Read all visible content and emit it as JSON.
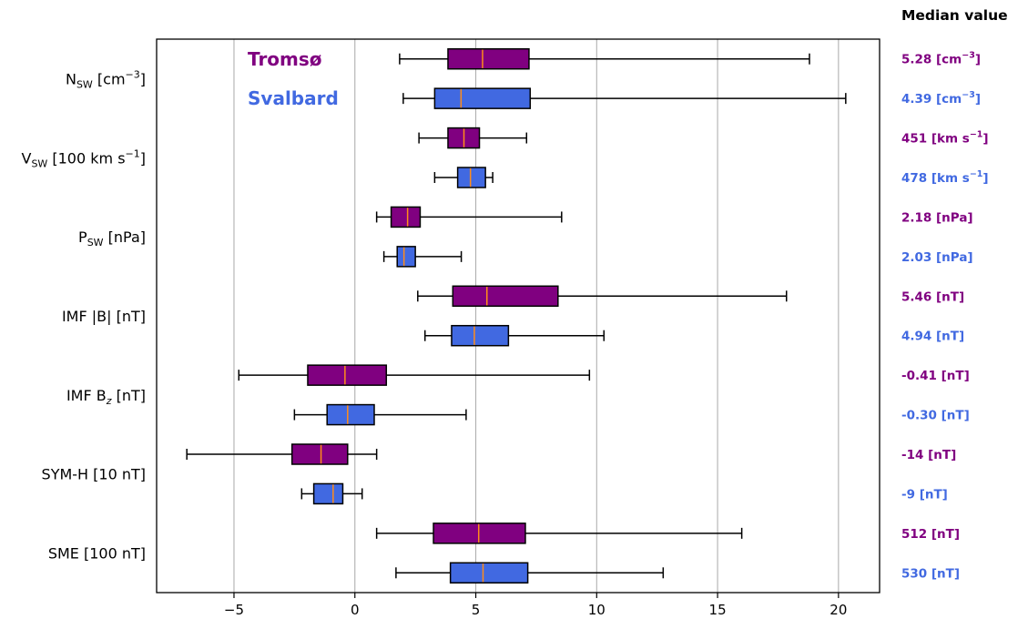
{
  "chart_data": {
    "type": "boxplot",
    "orientation": "horizontal",
    "xlim": [
      -8.2,
      21.7
    ],
    "x_ticks": [
      -5,
      0,
      5,
      10,
      15,
      20
    ],
    "x_tick_labels": [
      "−5",
      "0",
      "5",
      "10",
      "15",
      "20"
    ],
    "grid": "vertical",
    "header": "Median value",
    "colors": {
      "tromso": "#800080",
      "svalbard": "#4169e1",
      "median_line": "#ff8c1a",
      "grid": "#b0b0b0"
    },
    "series": [
      {
        "name": "Tromsø",
        "color": "#800080"
      },
      {
        "name": "Svalbard",
        "color": "#4169e1"
      }
    ],
    "categories": [
      {
        "label_main": "N",
        "label_sub": "SW",
        "label_rest": " [cm",
        "label_sup": "−3",
        "label_end": "]",
        "boxes": [
          {
            "series": "Tromsø",
            "whisker_low": 1.85,
            "q1": 3.85,
            "median": 5.28,
            "q3": 7.2,
            "whisker_high": 18.8,
            "median_text": {
              "main": "5.28 [cm",
              "sup": "−3",
              "end": "]"
            }
          },
          {
            "series": "Svalbard",
            "whisker_low": 2.0,
            "q1": 3.3,
            "median": 4.39,
            "q3": 7.25,
            "whisker_high": 20.3,
            "median_text": {
              "main": "4.39 [cm",
              "sup": "−3",
              "end": "]"
            }
          }
        ]
      },
      {
        "label_main": "V",
        "label_sub": "SW",
        "label_rest": " [100 km s",
        "label_sup": "−1",
        "label_end": "]",
        "boxes": [
          {
            "series": "Tromsø",
            "whisker_low": 2.65,
            "q1": 3.85,
            "median": 4.51,
            "q3": 5.15,
            "whisker_high": 7.1,
            "median_text": {
              "main": "451 [km s",
              "sup": "−1",
              "end": "]"
            }
          },
          {
            "series": "Svalbard",
            "whisker_low": 3.3,
            "q1": 4.25,
            "median": 4.78,
            "q3": 5.4,
            "whisker_high": 5.7,
            "median_text": {
              "main": "478 [km s",
              "sup": "−1",
              "end": "]"
            }
          }
        ]
      },
      {
        "label_main": "P",
        "label_sub": "SW",
        "label_rest": " [nPa]",
        "label_sup": "",
        "label_end": "",
        "boxes": [
          {
            "series": "Tromsø",
            "whisker_low": 0.9,
            "q1": 1.5,
            "median": 2.18,
            "q3": 2.7,
            "whisker_high": 8.55,
            "median_text": {
              "main": "2.18 [nPa]",
              "sup": "",
              "end": ""
            }
          },
          {
            "series": "Svalbard",
            "whisker_low": 1.2,
            "q1": 1.75,
            "median": 2.03,
            "q3": 2.5,
            "whisker_high": 4.4,
            "median_text": {
              "main": "2.03 [nPa]",
              "sup": "",
              "end": ""
            }
          }
        ]
      },
      {
        "label_main": "IMF |B| [nT]",
        "label_sub": "",
        "label_rest": "",
        "label_sup": "",
        "label_end": "",
        "boxes": [
          {
            "series": "Tromsø",
            "whisker_low": 2.6,
            "q1": 4.05,
            "median": 5.46,
            "q3": 8.4,
            "whisker_high": 17.85,
            "median_text": {
              "main": "5.46 [nT]",
              "sup": "",
              "end": ""
            }
          },
          {
            "series": "Svalbard",
            "whisker_low": 2.9,
            "q1": 4.0,
            "median": 4.94,
            "q3": 6.35,
            "whisker_high": 10.3,
            "median_text": {
              "main": "4.94 [nT]",
              "sup": "",
              "end": ""
            }
          }
        ]
      },
      {
        "label_main": "IMF B",
        "label_sub": "z",
        "label_rest": " [nT]",
        "label_sup": "",
        "label_end": "",
        "boxes": [
          {
            "series": "Tromsø",
            "whisker_low": -4.8,
            "q1": -1.95,
            "median": -0.41,
            "q3": 1.3,
            "whisker_high": 9.7,
            "median_text": {
              "main": "-0.41 [nT]",
              "sup": "",
              "end": ""
            }
          },
          {
            "series": "Svalbard",
            "whisker_low": -2.5,
            "q1": -1.15,
            "median": -0.3,
            "q3": 0.8,
            "whisker_high": 4.6,
            "median_text": {
              "main": "-0.30 [nT]",
              "sup": "",
              "end": ""
            }
          }
        ]
      },
      {
        "label_main": "SYM-H [10 nT]",
        "label_sub": "",
        "label_rest": "",
        "label_sup": "",
        "label_end": "",
        "boxes": [
          {
            "series": "Tromsø",
            "whisker_low": -6.95,
            "q1": -2.6,
            "median": -1.4,
            "q3": -0.3,
            "whisker_high": 0.9,
            "median_text": {
              "main": "-14 [nT]",
              "sup": "",
              "end": ""
            }
          },
          {
            "series": "Svalbard",
            "whisker_low": -2.2,
            "q1": -1.7,
            "median": -0.9,
            "q3": -0.5,
            "whisker_high": 0.3,
            "median_text": {
              "main": "-9 [nT]",
              "sup": "",
              "end": ""
            }
          }
        ]
      },
      {
        "label_main": "SME [100 nT]",
        "label_sub": "",
        "label_rest": "",
        "label_sup": "",
        "label_end": "",
        "boxes": [
          {
            "series": "Tromsø",
            "whisker_low": 0.9,
            "q1": 3.25,
            "median": 5.12,
            "q3": 7.05,
            "whisker_high": 16.0,
            "median_text": {
              "main": "512 [nT]",
              "sup": "",
              "end": ""
            }
          },
          {
            "series": "Svalbard",
            "whisker_low": 1.7,
            "q1": 3.95,
            "median": 5.3,
            "q3": 7.15,
            "whisker_high": 12.75,
            "median_text": {
              "main": "530 [nT]",
              "sup": "",
              "end": ""
            }
          }
        ]
      }
    ]
  }
}
